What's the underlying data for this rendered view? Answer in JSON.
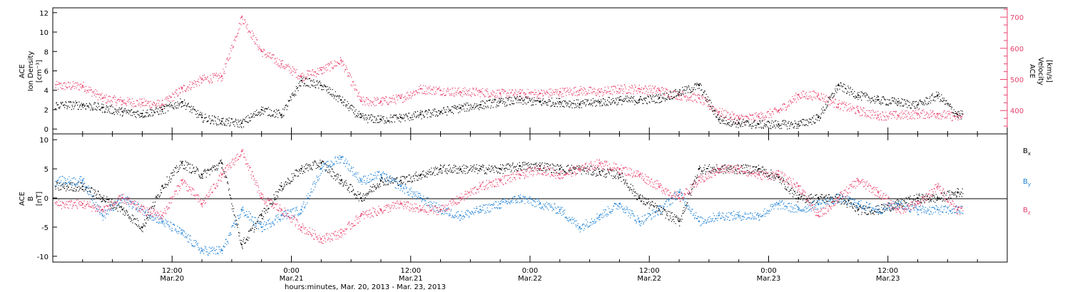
{
  "colors": {
    "black": "#000000",
    "blue": "#1a7fd4",
    "pink": "#e8416c"
  },
  "chart_data": [
    {
      "type": "scatter",
      "panel": "top",
      "ylabel_lines": [
        "ACE",
        "Ion Density",
        "[cm⁻³]"
      ],
      "ylim": [
        -0.5,
        12.5
      ],
      "yticks": [
        0,
        2,
        4,
        6,
        8,
        10,
        12
      ],
      "y2label_lines": [
        "ACE",
        "Velocity",
        "[km/s]"
      ],
      "y2lim": [
        325,
        730
      ],
      "y2ticks": [
        400,
        500,
        600,
        700
      ],
      "series": [
        {
          "color": "#000000",
          "axis": "left",
          "x_hours": [
            3,
            5,
            7,
            9,
            11,
            13,
            15,
            17,
            19,
            21,
            23,
            25,
            27,
            29,
            31,
            33,
            35,
            37,
            39,
            41,
            43,
            45,
            47,
            49,
            51,
            53,
            55,
            57,
            59,
            61,
            63,
            65,
            67,
            69,
            71,
            73,
            75,
            77,
            79,
            81,
            83,
            85,
            87,
            89,
            91
          ],
          "values": [
            2.5,
            2.2,
            1.8,
            1.6,
            2.0,
            2.8,
            1.2,
            0.8,
            0.6,
            2.0,
            1.5,
            5.0,
            4.5,
            3.0,
            1.2,
            1.0,
            1.2,
            1.5,
            1.8,
            2.2,
            2.5,
            2.8,
            3.0,
            2.8,
            2.8,
            2.6,
            2.8,
            3.0,
            3.0,
            3.2,
            3.8,
            4.5,
            1.0,
            0.6,
            0.5,
            0.5,
            0.5,
            1.2,
            4.5,
            3.5,
            3.0,
            2.8,
            2.5,
            3.5,
            1.5
          ]
        },
        {
          "color": "#e8416c",
          "axis": "right",
          "x_hours": [
            3,
            5,
            7,
            9,
            11,
            13,
            15,
            17,
            19,
            21,
            23,
            25,
            27,
            29,
            31,
            33,
            35,
            37,
            39,
            41,
            43,
            45,
            47,
            49,
            51,
            53,
            55,
            57,
            59,
            61,
            63,
            65,
            67,
            69,
            71,
            73,
            75,
            77,
            79,
            81,
            83,
            85,
            87,
            89,
            91
          ],
          "values": [
            480,
            440,
            430,
            425,
            420,
            470,
            500,
            510,
            700,
            590,
            550,
            510,
            530,
            560,
            430,
            430,
            440,
            470,
            465,
            460,
            460,
            455,
            455,
            455,
            460,
            465,
            460,
            470,
            470,
            465,
            450,
            440,
            395,
            375,
            380,
            400,
            450,
            450,
            420,
            400,
            385,
            385,
            390,
            390,
            380
          ]
        }
      ]
    },
    {
      "type": "scatter",
      "panel": "bottom",
      "ylabel_lines": [
        "ACE",
        "B",
        "[nT]"
      ],
      "ylim": [
        -11,
        11
      ],
      "yticks": [
        -10,
        -5,
        0,
        5,
        10
      ],
      "x_label": "hours:minutes, Mar. 20, 2013 - Mar. 23, 2013",
      "xlim_hours": [
        0,
        96
      ],
      "x_tick_times": [
        "12:00",
        "0:00",
        "12:00",
        "0:00",
        "12:00",
        "0:00",
        "12:00"
      ],
      "x_tick_dates": [
        "Mar.20",
        "Mar.21",
        "Mar.21",
        "Mar.22",
        "Mar.22",
        "Mar.23",
        "Mar.23"
      ],
      "x_tick_hours": [
        12,
        24,
        36,
        48,
        60,
        72,
        84
      ],
      "series": [
        {
          "name_base": "B",
          "name_sub": "x",
          "color": "#000000",
          "x_hours": [
            3,
            5,
            7,
            9,
            11,
            13,
            15,
            17,
            19,
            21,
            23,
            25,
            27,
            29,
            31,
            33,
            35,
            37,
            39,
            41,
            43,
            45,
            47,
            49,
            51,
            53,
            55,
            57,
            59,
            61,
            63,
            65,
            67,
            69,
            71,
            73,
            75,
            77,
            79,
            81,
            83,
            85,
            87,
            89,
            91
          ],
          "values": [
            2,
            0,
            -2,
            -5,
            2,
            6,
            4,
            6,
            -8,
            -3,
            2,
            5,
            6,
            3,
            0,
            3,
            3,
            4,
            5,
            5,
            5,
            5,
            5.5,
            5.5,
            5,
            5,
            4.5,
            4,
            0,
            -2,
            -4,
            5,
            5,
            5,
            5,
            3.5,
            0,
            0,
            0,
            -2,
            -2,
            -1,
            0,
            0,
            1
          ]
        },
        {
          "name_base": "B",
          "name_sub": "y",
          "color": "#1a7fd4",
          "x_hours": [
            3,
            5,
            7,
            9,
            11,
            13,
            15,
            17,
            19,
            21,
            23,
            25,
            27,
            29,
            31,
            33,
            35,
            37,
            39,
            41,
            43,
            45,
            47,
            49,
            51,
            53,
            55,
            57,
            59,
            61,
            63,
            65,
            67,
            69,
            71,
            73,
            75,
            77,
            79,
            81,
            83,
            85,
            87,
            89,
            91
          ],
          "values": [
            3,
            -3,
            0,
            -2,
            -4,
            -6,
            -9,
            -9,
            -2,
            -5,
            -3,
            -2,
            5,
            7,
            3,
            4,
            2,
            0,
            -2,
            -3,
            -2,
            -1,
            0,
            -1,
            -2,
            -5,
            -3,
            -1,
            -4,
            -2,
            1,
            -4,
            -3,
            -3,
            -3,
            -1,
            -2,
            -1,
            0,
            -1,
            -2,
            -1,
            -2,
            -2,
            -2
          ]
        },
        {
          "name_base": "B",
          "name_sub": "z",
          "color": "#e8416c",
          "x_hours": [
            3,
            5,
            7,
            9,
            11,
            13,
            15,
            17,
            19,
            21,
            23,
            25,
            27,
            29,
            31,
            33,
            35,
            37,
            39,
            41,
            43,
            45,
            47,
            49,
            51,
            53,
            55,
            57,
            59,
            61,
            63,
            65,
            67,
            69,
            71,
            73,
            75,
            77,
            79,
            81,
            83,
            85,
            87,
            89,
            91
          ],
          "values": [
            -1,
            -2,
            0,
            -2,
            -3,
            3,
            -1,
            4,
            8,
            0,
            -2,
            -5,
            -7,
            -6,
            -3,
            -2,
            -1,
            -2,
            -2,
            0,
            2,
            3,
            4,
            5,
            4,
            5,
            6,
            5,
            4,
            2,
            0,
            3,
            5,
            5,
            4,
            4,
            2,
            -3,
            0,
            3,
            1,
            -2,
            -1,
            2,
            -2
          ]
        }
      ]
    }
  ]
}
